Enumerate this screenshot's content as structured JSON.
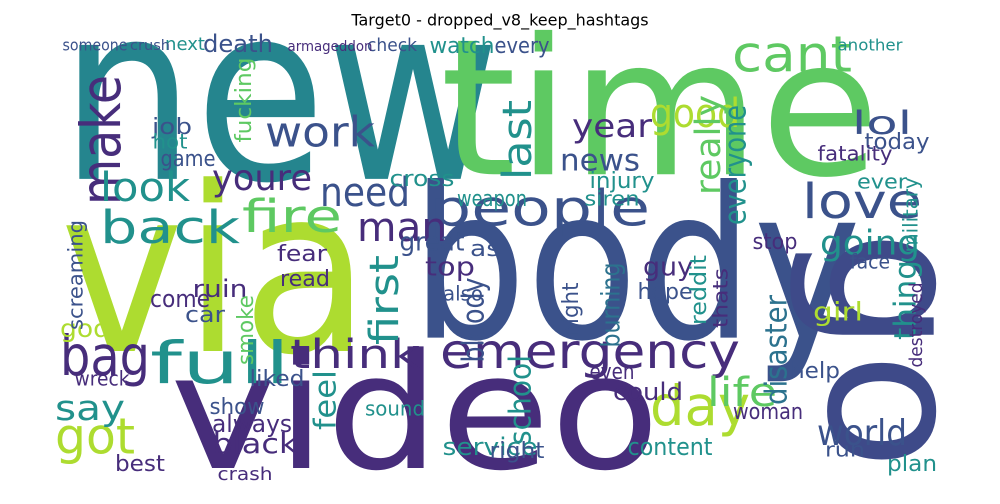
{
  "chart_data": {
    "type": "wordcloud",
    "title": "Target0 - dropped_v8_keep_hashtags",
    "words": [
      "new",
      "time",
      "body",
      "via",
      "video",
      "go",
      "people",
      "emergency",
      "back",
      "fire",
      "bag",
      "full",
      "think",
      "make",
      "look",
      "youre",
      "work",
      "need",
      "cant",
      "good",
      "love",
      "news",
      "year",
      "lol",
      "going",
      "day",
      "world",
      "got",
      "say",
      "man",
      "first",
      "last",
      "really",
      "everyone",
      "life",
      "disaster",
      "thing",
      "school",
      "black",
      "feel",
      "always",
      "show",
      "death",
      "crash",
      "best",
      "bloody",
      "burning",
      "night",
      "top",
      "guy",
      "girl",
      "hope",
      "ruin",
      "come",
      "car",
      "god",
      "screaming",
      "smoke",
      "read",
      "fear",
      "liked",
      "sound",
      "service",
      "right",
      "content",
      "plan",
      "could",
      "woman",
      "help",
      "run",
      "today",
      "ever",
      "fucking",
      "job",
      "game",
      "hot",
      "siren",
      "injury",
      "weapon",
      "cross",
      "great",
      "as",
      "also",
      "even",
      "stop",
      "wreck",
      "watch",
      "every",
      "check",
      "next",
      "someone",
      "crush",
      "armageddon",
      "another",
      "reddit",
      "thats",
      "fatality",
      "military",
      "destroyed",
      "face"
    ]
  }
}
